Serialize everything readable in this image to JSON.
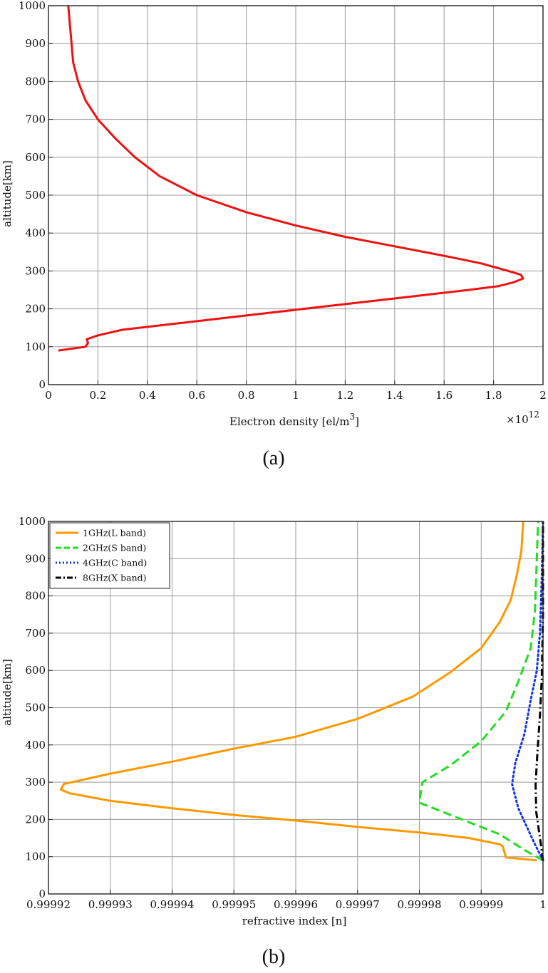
{
  "chart_data": [
    {
      "type": "line",
      "caption": "(a)",
      "xlabel": "Electron density [el/m",
      "xlabel_sup": "3",
      "xlabel_end": "]",
      "ylabel": "altitude[km]",
      "x_multiplier": "×10",
      "x_multiplier_exp": "12",
      "xlim": [
        0,
        2
      ],
      "ylim": [
        0,
        1000
      ],
      "xticks": [
        0,
        0.2,
        0.4,
        0.6,
        0.8,
        1,
        1.2,
        1.4,
        1.6,
        1.8,
        2
      ],
      "xtick_labels": [
        "0",
        "0.2",
        "0.4",
        "0.6",
        "0.8",
        "1",
        "1.2",
        "1.4",
        "1.6",
        "1.8",
        "2"
      ],
      "yticks": [
        0,
        100,
        200,
        300,
        400,
        500,
        600,
        700,
        800,
        900,
        1000
      ],
      "ytick_labels": [
        "0",
        "100",
        "200",
        "300",
        "400",
        "500",
        "600",
        "700",
        "800",
        "900",
        "1000"
      ],
      "grid": true,
      "series": [
        {
          "color": "#ee1111",
          "style": "solid",
          "x": [
            0.04,
            0.15,
            0.16,
            0.155,
            0.2,
            0.3,
            0.5,
            0.7,
            0.9,
            1.1,
            1.3,
            1.5,
            1.7,
            1.82,
            1.88,
            1.92,
            1.91,
            1.86,
            1.75,
            1.6,
            1.4,
            1.2,
            1.0,
            0.8,
            0.6,
            0.45,
            0.35,
            0.27,
            0.2,
            0.15,
            0.12,
            0.1,
            0.08
          ],
          "y": [
            90,
            100,
            110,
            120,
            130,
            145,
            160,
            175,
            190,
            205,
            220,
            235,
            250,
            260,
            270,
            280,
            290,
            300,
            320,
            340,
            365,
            390,
            420,
            455,
            500,
            550,
            600,
            650,
            700,
            750,
            800,
            850,
            1000
          ]
        }
      ]
    },
    {
      "type": "line",
      "caption": "(b)",
      "xlabel": "refractive index [n]",
      "ylabel": "altitude[km]",
      "xlim": [
        0.99992,
        1.0
      ],
      "ylim": [
        0,
        1000
      ],
      "xticks": [
        0.99992,
        0.99993,
        0.99994,
        0.99995,
        0.99996,
        0.99997,
        0.99998,
        0.99999,
        1.0
      ],
      "xtick_labels": [
        "0.99992",
        "0.99993",
        "0.99994",
        "0.99995",
        "0.99996",
        "0.99997",
        "0.99998",
        "0.99999",
        "1"
      ],
      "yticks": [
        0,
        100,
        200,
        300,
        400,
        500,
        600,
        700,
        800,
        900,
        1000
      ],
      "ytick_labels": [
        "0",
        "100",
        "200",
        "300",
        "400",
        "500",
        "600",
        "700",
        "800",
        "900",
        "1000"
      ],
      "grid": true,
      "legend_position": "top-left",
      "series": [
        {
          "name": "1GHz(L band)",
          "color": "#ff9900",
          "style": "solid",
          "x": [
            0.999999,
            0.999994,
            0.9999938,
            0.9999936,
            0.9999935,
            0.999993,
            0.999988,
            0.99998,
            0.99997,
            0.99996,
            0.99995,
            0.99994,
            0.99993,
            0.9999235,
            0.999922,
            0.9999225,
            0.99993,
            0.99994,
            0.99995,
            0.99996,
            0.99997,
            0.999979,
            0.999985,
            0.99999,
            0.999993,
            0.9999948,
            0.9999958,
            0.9999965,
            0.9999968
          ],
          "y": [
            90,
            98,
            110,
            120,
            128,
            133,
            150,
            165,
            180,
            197,
            212,
            230,
            250,
            270,
            280,
            295,
            323,
            355,
            390,
            422,
            470,
            530,
            595,
            660,
            730,
            790,
            860,
            920,
            1000
          ]
        },
        {
          "name": "2GHz(S band)",
          "color": "#22dd22",
          "style": "dash",
          "x": [
            1.0,
            0.999997,
            0.999993,
            0.99998,
            0.9999805,
            0.999985,
            0.99999,
            0.999994,
            0.999996,
            0.999998,
            0.9999987,
            0.999999,
            0.9999992
          ],
          "y": [
            90,
            118,
            160,
            245,
            300,
            345,
            410,
            490,
            570,
            660,
            760,
            900,
            1000
          ]
        },
        {
          "name": "4GHz(C band)",
          "color": "#1133ee",
          "style": "dot",
          "x": [
            1.0,
            0.9999985,
            0.999996,
            0.999995,
            0.9999955,
            0.999997,
            0.999998,
            0.999999,
            0.9999995,
            0.9999998,
            1.0
          ],
          "y": [
            90,
            140,
            230,
            295,
            350,
            430,
            520,
            600,
            700,
            850,
            1000
          ]
        },
        {
          "name": "8GHz(X band)",
          "color": "#000000",
          "style": "dashdot",
          "x": [
            1.0,
            0.9999996,
            0.9999989,
            0.9999988,
            0.9999991,
            0.9999995,
            0.9999998,
            1.0,
            1.0
          ],
          "y": [
            90,
            140,
            220,
            295,
            380,
            480,
            580,
            750,
            1000
          ]
        }
      ]
    }
  ]
}
